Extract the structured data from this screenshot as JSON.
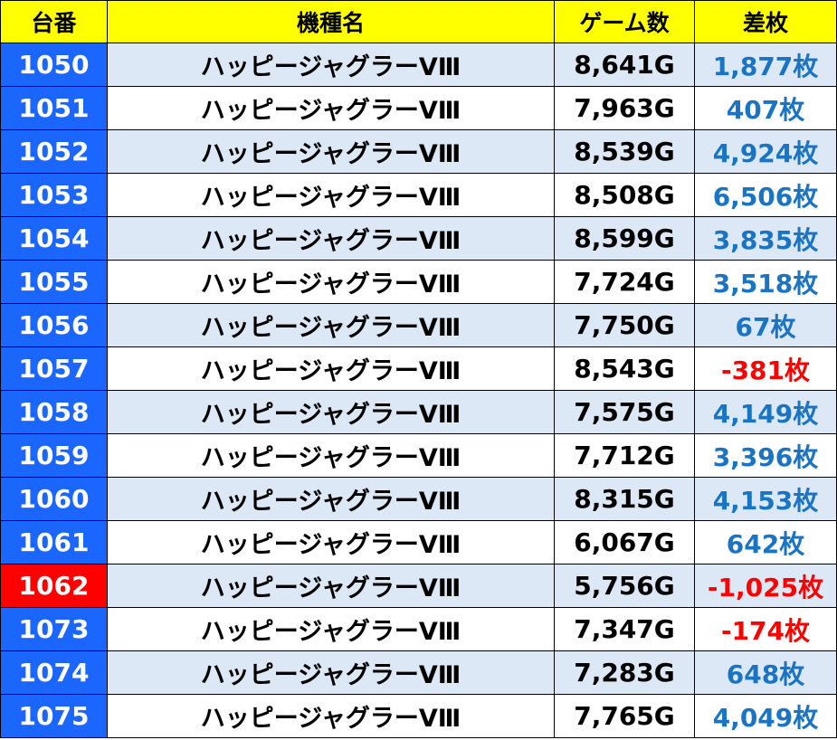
{
  "headers": [
    "台番",
    "機種名",
    "ゲーム数",
    "差枚"
  ],
  "colors": {
    "header_bg": "#ffff00",
    "number_bg": "#1a66ff",
    "number_bg_highlight": "#ff0000",
    "shaded_row_bg": "#dde8f6",
    "positive_text": "#1a74c4",
    "negative_text": "#ff0000"
  },
  "rows": [
    {
      "num": "1050",
      "name": "ハッピージャグラーVⅢ",
      "games": "8,641G",
      "diff": "1,877枚",
      "neg": false,
      "hl": false
    },
    {
      "num": "1051",
      "name": "ハッピージャグラーVⅢ",
      "games": "7,963G",
      "diff": "407枚",
      "neg": false,
      "hl": false
    },
    {
      "num": "1052",
      "name": "ハッピージャグラーVⅢ",
      "games": "8,539G",
      "diff": "4,924枚",
      "neg": false,
      "hl": false
    },
    {
      "num": "1053",
      "name": "ハッピージャグラーVⅢ",
      "games": "8,508G",
      "diff": "6,506枚",
      "neg": false,
      "hl": false
    },
    {
      "num": "1054",
      "name": "ハッピージャグラーVⅢ",
      "games": "8,599G",
      "diff": "3,835枚",
      "neg": false,
      "hl": false
    },
    {
      "num": "1055",
      "name": "ハッピージャグラーVⅢ",
      "games": "7,724G",
      "diff": "3,518枚",
      "neg": false,
      "hl": false
    },
    {
      "num": "1056",
      "name": "ハッピージャグラーVⅢ",
      "games": "7,750G",
      "diff": "67枚",
      "neg": false,
      "hl": false
    },
    {
      "num": "1057",
      "name": "ハッピージャグラーVⅢ",
      "games": "8,543G",
      "diff": "-381枚",
      "neg": true,
      "hl": false
    },
    {
      "num": "1058",
      "name": "ハッピージャグラーVⅢ",
      "games": "7,575G",
      "diff": "4,149枚",
      "neg": false,
      "hl": false
    },
    {
      "num": "1059",
      "name": "ハッピージャグラーVⅢ",
      "games": "7,712G",
      "diff": "3,396枚",
      "neg": false,
      "hl": false
    },
    {
      "num": "1060",
      "name": "ハッピージャグラーVⅢ",
      "games": "8,315G",
      "diff": "4,153枚",
      "neg": false,
      "hl": false
    },
    {
      "num": "1061",
      "name": "ハッピージャグラーVⅢ",
      "games": "6,067G",
      "diff": "642枚",
      "neg": false,
      "hl": false
    },
    {
      "num": "1062",
      "name": "ハッピージャグラーVⅢ",
      "games": "5,756G",
      "diff": "-1,025枚",
      "neg": true,
      "hl": true
    },
    {
      "num": "1073",
      "name": "ハッピージャグラーVⅢ",
      "games": "7,347G",
      "diff": "-174枚",
      "neg": true,
      "hl": false
    },
    {
      "num": "1074",
      "name": "ハッピージャグラーVⅢ",
      "games": "7,283G",
      "diff": "648枚",
      "neg": false,
      "hl": false
    },
    {
      "num": "1075",
      "name": "ハッピージャグラーVⅢ",
      "games": "7,765G",
      "diff": "4,049枚",
      "neg": false,
      "hl": false
    }
  ]
}
